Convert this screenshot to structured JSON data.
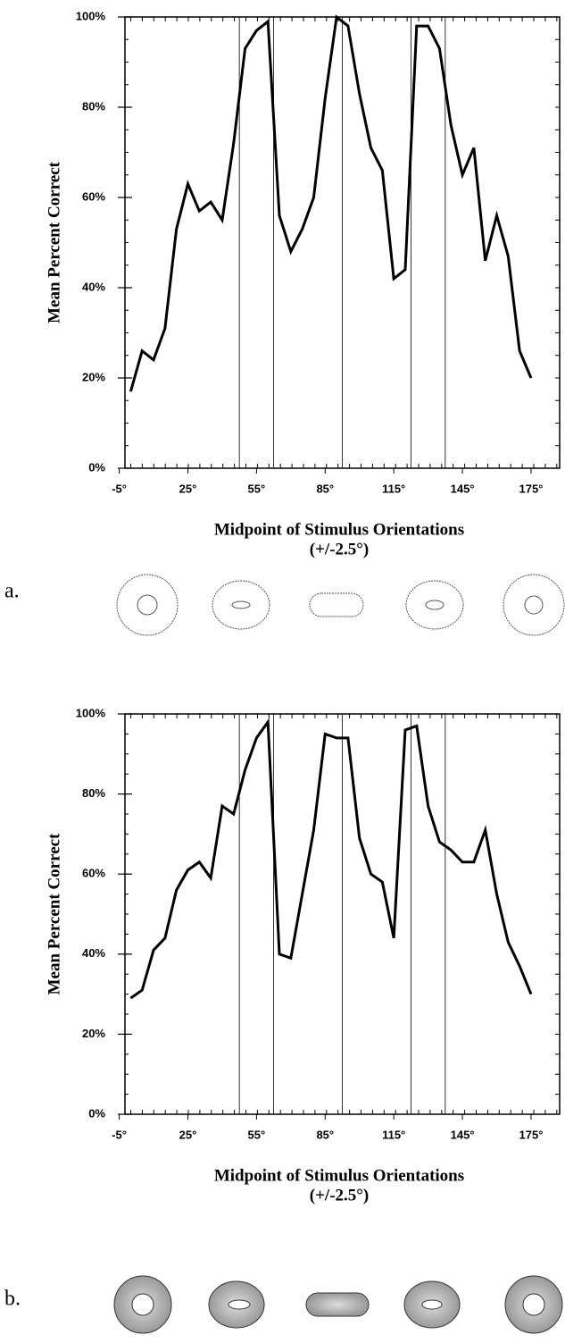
{
  "chart_data": [
    {
      "type": "line",
      "panel_label": "a.",
      "y_label": "Mean Percent Correct",
      "x_label": [
        "Midpoint of Stimulus Orientations",
        "(+/-2.5°)"
      ],
      "x": [
        0,
        5,
        10,
        15,
        20,
        25,
        30,
        35,
        40,
        45,
        50,
        55,
        60,
        65,
        70,
        75,
        80,
        85,
        90,
        95,
        100,
        105,
        110,
        115,
        120,
        125,
        130,
        135,
        140,
        145,
        150,
        155,
        160,
        165,
        170,
        175
      ],
      "values": [
        17,
        26,
        24,
        31,
        53,
        63,
        57,
        59,
        55,
        72,
        93,
        97,
        99,
        56,
        48,
        53,
        60,
        82,
        100,
        98,
        83,
        71,
        66,
        42,
        44,
        98,
        98,
        93,
        76,
        65,
        71,
        46,
        56,
        47,
        26,
        20
      ],
      "color": "#000000",
      "vlines": [
        47.5,
        62.5,
        92.5,
        122.5,
        137.5
      ],
      "xlim": [
        -2.5,
        187.5
      ],
      "ylim": [
        0,
        100
      ],
      "xticks": [
        {
          "value": -5,
          "label": "-5°"
        },
        {
          "value": 25,
          "label": "25°"
        },
        {
          "value": 55,
          "label": "55°"
        },
        {
          "value": 85,
          "label": "85°"
        },
        {
          "value": 115,
          "label": "115°"
        },
        {
          "value": 145,
          "label": "145°"
        },
        {
          "value": 175,
          "label": "175°"
        }
      ],
      "yticks": [
        {
          "value": 0,
          "label": "0%"
        },
        {
          "value": 20,
          "label": "20%"
        },
        {
          "value": 40,
          "label": "40%"
        },
        {
          "value": 60,
          "label": "60%"
        },
        {
          "value": 80,
          "label": "80%"
        },
        {
          "value": 100,
          "label": "100%"
        }
      ]
    },
    {
      "type": "line",
      "panel_label": "b.",
      "y_label": "Mean Percent Correct",
      "x_label": [
        "Midpoint of Stimulus Orientations",
        "(+/-2.5°)"
      ],
      "x": [
        0,
        5,
        10,
        15,
        20,
        25,
        30,
        35,
        40,
        45,
        50,
        55,
        60,
        65,
        70,
        75,
        80,
        85,
        90,
        95,
        100,
        105,
        110,
        115,
        120,
        125,
        130,
        135,
        140,
        145,
        150,
        155,
        160,
        165,
        170,
        175
      ],
      "values": [
        29,
        31,
        41,
        44,
        56,
        61,
        63,
        59,
        77,
        75,
        86,
        94,
        98,
        40,
        39,
        55,
        71,
        95,
        94,
        94,
        69,
        60,
        58,
        44,
        96,
        97,
        77,
        68,
        66,
        63,
        63,
        71,
        55,
        43,
        37,
        30
      ],
      "color": "#000000",
      "vlines": [
        47.5,
        62.5,
        92.5,
        122.5,
        137.5
      ],
      "xlim": [
        -2.5,
        187.5
      ],
      "ylim": [
        0,
        100
      ],
      "xticks": [
        {
          "value": -5,
          "label": "-5°"
        },
        {
          "value": 25,
          "label": "25°"
        },
        {
          "value": 55,
          "label": "55°"
        },
        {
          "value": 85,
          "label": "85°"
        },
        {
          "value": 115,
          "label": "115°"
        },
        {
          "value": 145,
          "label": "145°"
        },
        {
          "value": 175,
          "label": "175°"
        }
      ],
      "yticks": [
        {
          "value": 0,
          "label": "0%"
        },
        {
          "value": 20,
          "label": "20%"
        },
        {
          "value": 40,
          "label": "40%"
        },
        {
          "value": 60,
          "label": "60%"
        },
        {
          "value": 80,
          "label": "80%"
        },
        {
          "value": 100,
          "label": "100%"
        }
      ]
    }
  ]
}
